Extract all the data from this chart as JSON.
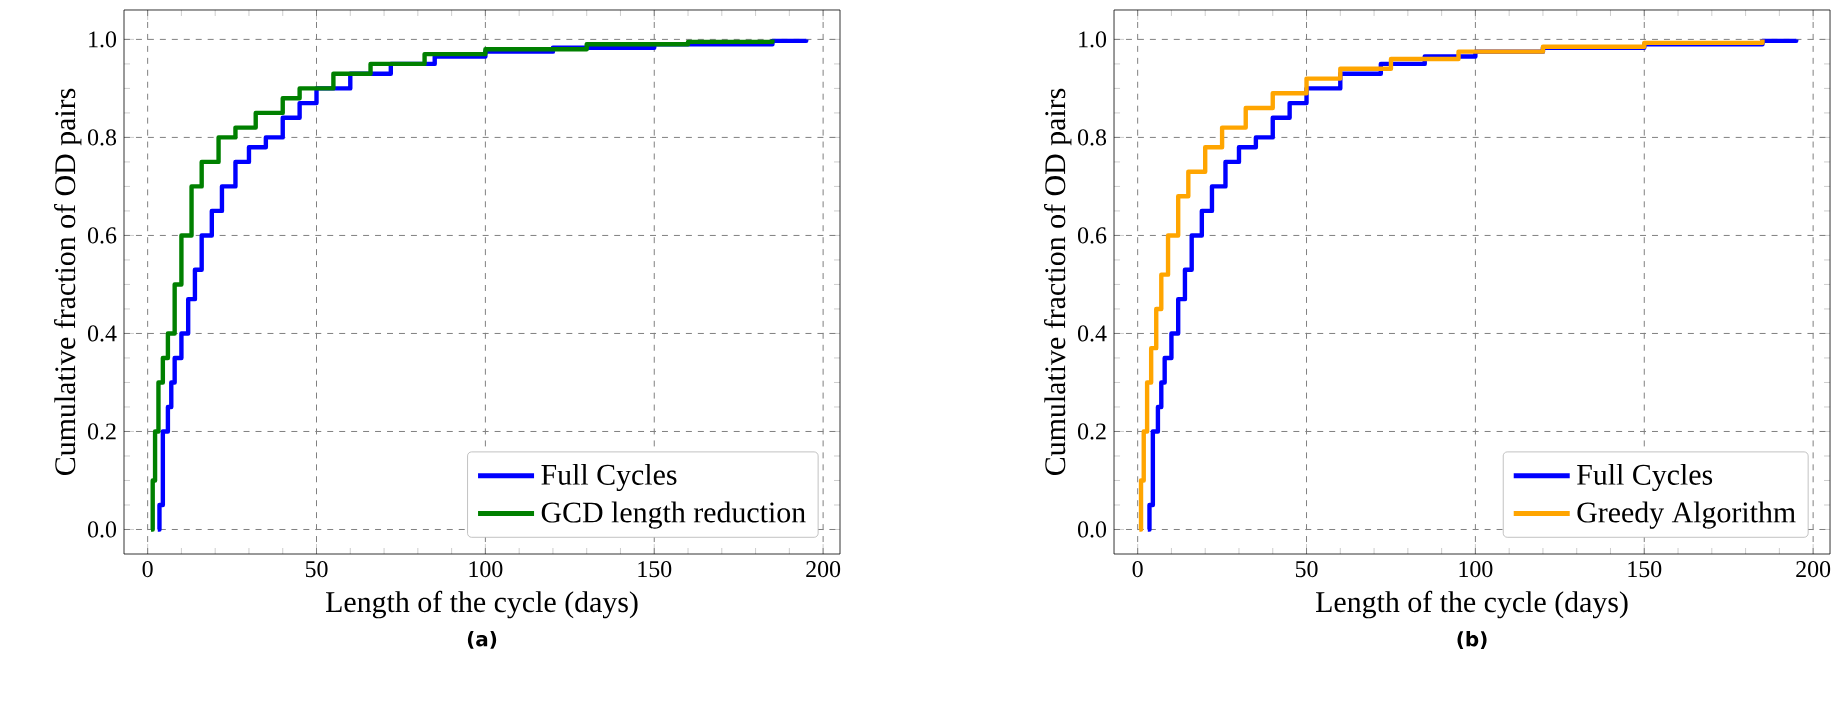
{
  "chart_data": [
    {
      "type": "step",
      "xlabel": "Length of the cycle (days)",
      "ylabel": "Cumulative fraction of OD pairs",
      "annotations": [
        "(a)"
      ],
      "xlim": [
        -7,
        205
      ],
      "ylim": [
        -0.05,
        1.06
      ],
      "xticks": [
        0,
        50,
        100,
        150,
        200
      ],
      "yticks": [
        {
          "value": 0,
          "label": "0.0"
        },
        {
          "value": 0.2,
          "label": "0.2"
        },
        {
          "value": 0.4,
          "label": "0.4"
        },
        {
          "value": 0.6,
          "label": "0.6"
        },
        {
          "value": 0.8,
          "label": "0.8"
        },
        {
          "value": 1,
          "label": "1.0"
        }
      ],
      "grid": true,
      "legend": "bottom right",
      "series": [
        {
          "name": "Full Cycles",
          "color": "#0000ff",
          "x": [
            3,
            3.5,
            4.5,
            6,
            7,
            8,
            10,
            12,
            14,
            16,
            19,
            22,
            26,
            30,
            35,
            40,
            45,
            50,
            60,
            72,
            85,
            100,
            120,
            150,
            185,
            195
          ],
          "values": [
            0,
            0.05,
            0.2,
            0.25,
            0.3,
            0.35,
            0.4,
            0.47,
            0.53,
            0.6,
            0.65,
            0.7,
            0.75,
            0.78,
            0.8,
            0.84,
            0.87,
            0.9,
            0.93,
            0.95,
            0.965,
            0.975,
            0.983,
            0.99,
            0.997,
            1.0
          ]
        },
        {
          "name": "GCD length reduction",
          "color": "#008000",
          "x": [
            1,
            1.5,
            2.2,
            3.2,
            4.5,
            6,
            8,
            10,
            13,
            16,
            21,
            26,
            32,
            40,
            45,
            55,
            66,
            82,
            100,
            130,
            160,
            185
          ],
          "values": [
            0,
            0.1,
            0.2,
            0.3,
            0.35,
            0.4,
            0.5,
            0.6,
            0.7,
            0.75,
            0.8,
            0.82,
            0.85,
            0.88,
            0.9,
            0.93,
            0.95,
            0.97,
            0.98,
            0.99,
            0.995,
            1.0
          ]
        }
      ]
    },
    {
      "type": "step",
      "xlabel": "Length of the cycle (days)",
      "ylabel": "Cumulative fraction of OD pairs",
      "annotations": [
        "(b)"
      ],
      "xlim": [
        -7,
        205
      ],
      "ylim": [
        -0.05,
        1.06
      ],
      "xticks": [
        0,
        50,
        100,
        150,
        200
      ],
      "yticks": [
        {
          "value": 0,
          "label": "0.0"
        },
        {
          "value": 0.2,
          "label": "0.2"
        },
        {
          "value": 0.4,
          "label": "0.4"
        },
        {
          "value": 0.6,
          "label": "0.6"
        },
        {
          "value": 0.8,
          "label": "0.8"
        },
        {
          "value": 1,
          "label": "1.0"
        }
      ],
      "grid": true,
      "legend": "bottom right",
      "series": [
        {
          "name": "Full Cycles",
          "color": "#0000ff",
          "x": [
            3,
            3.5,
            4.5,
            6,
            7,
            8,
            10,
            12,
            14,
            16,
            19,
            22,
            26,
            30,
            35,
            40,
            45,
            50,
            60,
            72,
            85,
            100,
            120,
            150,
            185,
            195
          ],
          "values": [
            0,
            0.05,
            0.2,
            0.25,
            0.3,
            0.35,
            0.4,
            0.47,
            0.53,
            0.6,
            0.65,
            0.7,
            0.75,
            0.78,
            0.8,
            0.84,
            0.87,
            0.9,
            0.93,
            0.95,
            0.965,
            0.975,
            0.983,
            0.99,
            0.997,
            1.0
          ]
        },
        {
          "name": "Greedy Algorithm",
          "color": "#ffa500",
          "x": [
            0.5,
            1,
            1.8,
            2.8,
            4,
            5.5,
            7,
            9,
            12,
            15,
            20,
            25,
            32,
            40,
            50,
            60,
            75,
            95,
            120,
            150,
            185
          ],
          "values": [
            0,
            0.1,
            0.2,
            0.3,
            0.37,
            0.45,
            0.52,
            0.6,
            0.68,
            0.73,
            0.78,
            0.82,
            0.86,
            0.89,
            0.92,
            0.94,
            0.96,
            0.975,
            0.985,
            0.993,
            1.0
          ]
        }
      ]
    }
  ]
}
